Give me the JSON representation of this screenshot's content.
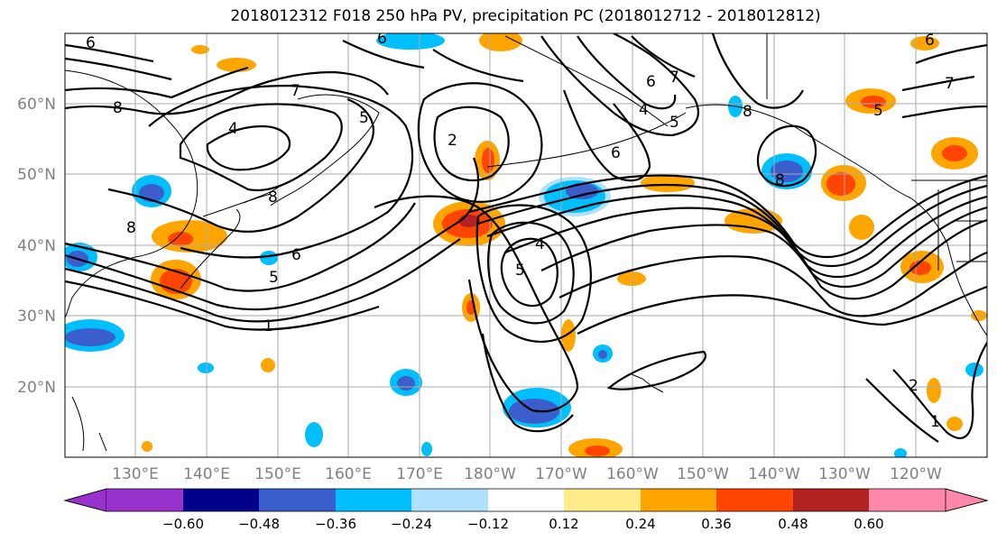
{
  "title": "2018012312 F018 250 hPa PV, precipitation PC (2018012712 - 2018012812)",
  "map": {
    "lat_labels": [
      "60°N",
      "50°N",
      "40°N",
      "30°N",
      "20°N"
    ],
    "lon_labels": [
      "130°E",
      "140°E",
      "150°E",
      "160°E",
      "170°E",
      "180°W",
      "170°W",
      "160°W",
      "150°W",
      "140°W",
      "130°W",
      "120°W"
    ],
    "contour_labels": [
      "6",
      "8",
      "7",
      "4",
      "8",
      "6",
      "8",
      "5",
      "6",
      "5",
      "1",
      "2",
      "5",
      "4",
      "6",
      "7",
      "6",
      "4",
      "5",
      "8",
      "8",
      "5",
      "7",
      "2",
      "1",
      "6"
    ]
  },
  "colorbar": {
    "ticks": [
      "−0.60",
      "−0.48",
      "−0.36",
      "−0.24",
      "−0.12",
      "0.12",
      "0.24",
      "0.36",
      "0.48",
      "0.60"
    ],
    "colors": [
      "#9932cc",
      "#00008b",
      "#3a5fcd",
      "#00bfff",
      "#b0e2ff",
      "#ffffff",
      "#ffec8b",
      "#ffa500",
      "#ff4500",
      "#b22222",
      "#ff88aa"
    ]
  }
}
